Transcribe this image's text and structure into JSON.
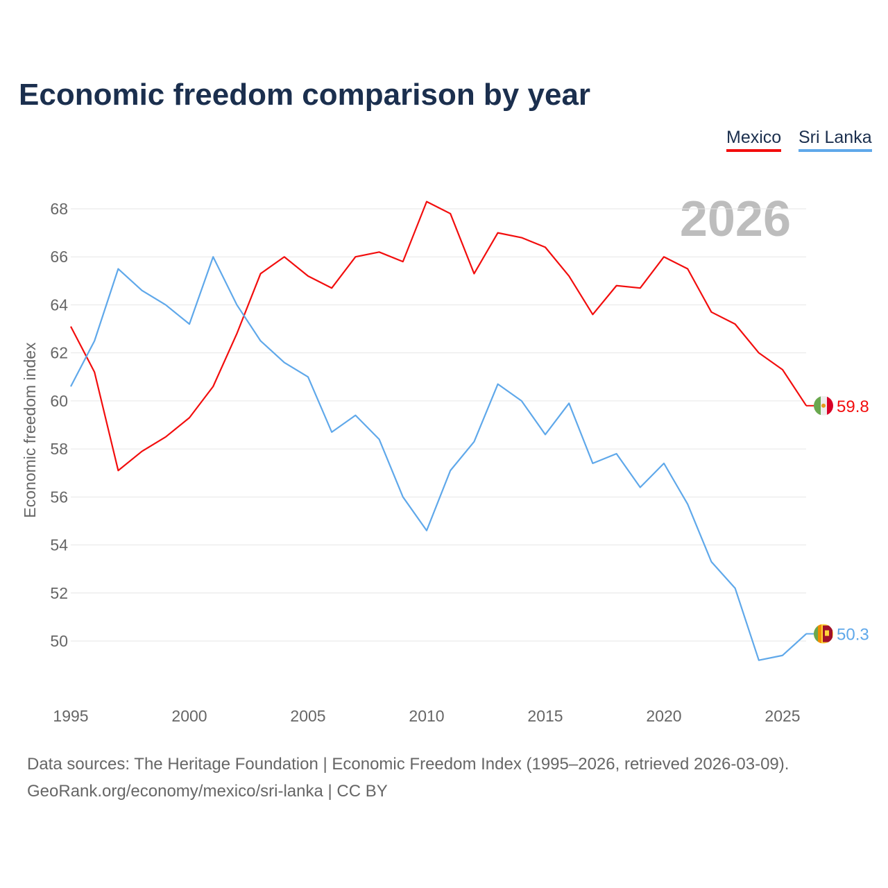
{
  "chart_data": {
    "type": "line",
    "title": "Economic freedom comparison by year",
    "ylabel": "Economic freedom index",
    "xlabel": "",
    "watermark_year": "2026",
    "ylim": [
      47.5,
      69
    ],
    "xlim": [
      1995,
      2026
    ],
    "yticks": [
      50,
      52,
      54,
      56,
      58,
      60,
      62,
      64,
      66,
      68
    ],
    "xticks": [
      1995,
      2000,
      2005,
      2010,
      2015,
      2020,
      2025
    ],
    "grid": true,
    "legend_position": "top-right",
    "x": [
      1995,
      1996,
      1997,
      1998,
      1999,
      2000,
      2001,
      2002,
      2003,
      2004,
      2005,
      2006,
      2007,
      2008,
      2009,
      2010,
      2011,
      2012,
      2013,
      2014,
      2015,
      2016,
      2017,
      2018,
      2019,
      2020,
      2021,
      2022,
      2023,
      2024,
      2025,
      2026
    ],
    "series": [
      {
        "name": "Mexico",
        "color": "#f20d0d",
        "end_label": "59.8",
        "values": [
          63.1,
          61.2,
          57.1,
          57.9,
          58.5,
          59.3,
          60.6,
          62.8,
          65.3,
          66.0,
          65.2,
          64.7,
          66.0,
          66.2,
          65.8,
          68.3,
          67.8,
          65.3,
          67.0,
          66.8,
          66.4,
          65.2,
          63.6,
          64.8,
          64.7,
          66.0,
          65.5,
          63.7,
          63.2,
          62.0,
          61.3,
          59.8
        ]
      },
      {
        "name": "Sri Lanka",
        "color": "#5fa8ea",
        "end_label": "50.3",
        "values": [
          60.6,
          62.5,
          65.5,
          64.6,
          64.0,
          63.2,
          66.0,
          64.0,
          62.5,
          61.6,
          61.0,
          58.7,
          59.4,
          58.4,
          56.0,
          54.6,
          57.1,
          58.3,
          60.7,
          60.0,
          58.6,
          59.9,
          57.4,
          57.8,
          56.4,
          57.4,
          55.7,
          53.3,
          52.2,
          49.2,
          49.4,
          50.3
        ]
      }
    ]
  },
  "footer": {
    "line1": "Data sources: The Heritage Foundation | Economic Freedom Index (1995–2026, retrieved 2026-03-09).",
    "line2": "GeoRank.org/economy/mexico/sri-lanka | CC BY"
  }
}
